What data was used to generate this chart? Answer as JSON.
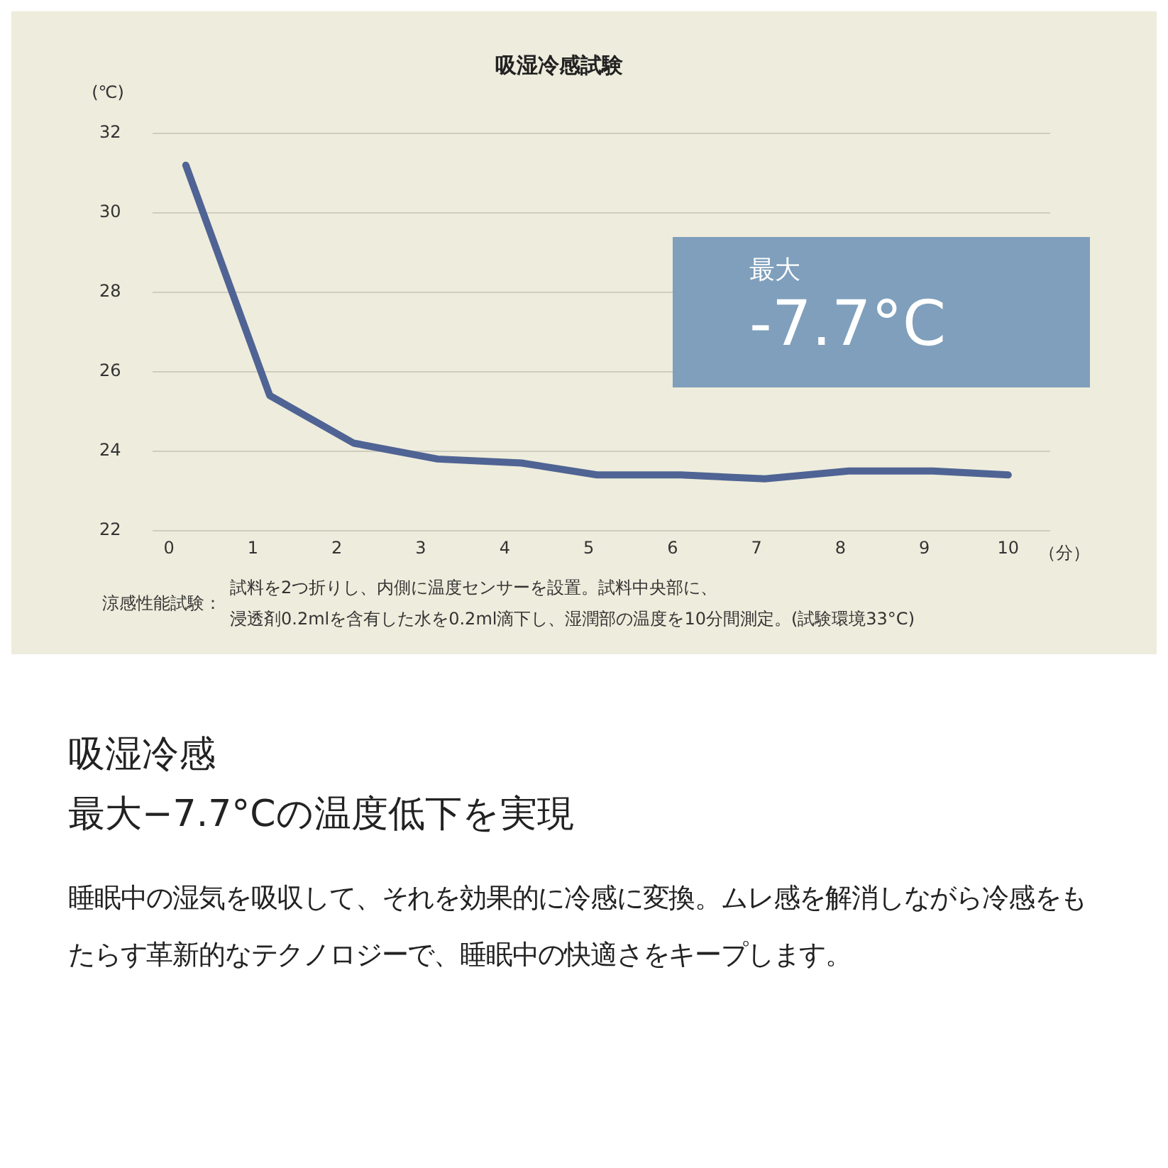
{
  "chart_data": {
    "type": "line",
    "title": "吸湿冷感試験",
    "xlabel": "（分）",
    "ylabel": "(℃)",
    "x": [
      0.2,
      1.2,
      2.2,
      3.2,
      4.2,
      5.1,
      6.1,
      7.1,
      8.1,
      9.1,
      10
    ],
    "series": [
      {
        "color": "#4f6494",
        "values": [
          31.2,
          25.4,
          24.2,
          23.8,
          23.7,
          23.4,
          23.4,
          23.3,
          23.5,
          23.5,
          23.4
        ]
      }
    ],
    "xlim": [
      -0.2,
      10.5
    ],
    "xticks": [
      0,
      1,
      2,
      3,
      4,
      5,
      6,
      7,
      8,
      9,
      10
    ],
    "ylim": [
      22,
      32
    ],
    "yticks": [
      22,
      24,
      26,
      28,
      30,
      32
    ],
    "grid": "y",
    "legend": false,
    "marker": "none",
    "line_style": "solid",
    "annotations": [
      "最大",
      "-7.7°C",
      "涼感性能試験：",
      "試料を2つ折りし、内側に温度センサーを設置。試料中央部に、",
      "浸透剤0.2mlを含有した水を0.2ml滴下し、湿潤部の温度を10分間測定。(試験環境33°C)",
      "吸湿冷感",
      "最大−7.7°Cの温度低下を実現",
      "睡眠中の湿気を吸収して、それを効果的に冷感に変換。ムレ感を解消しながら冷感をもたらす革新的なテクノロジーで、睡眠中の快適さをキープします。"
    ]
  }
}
